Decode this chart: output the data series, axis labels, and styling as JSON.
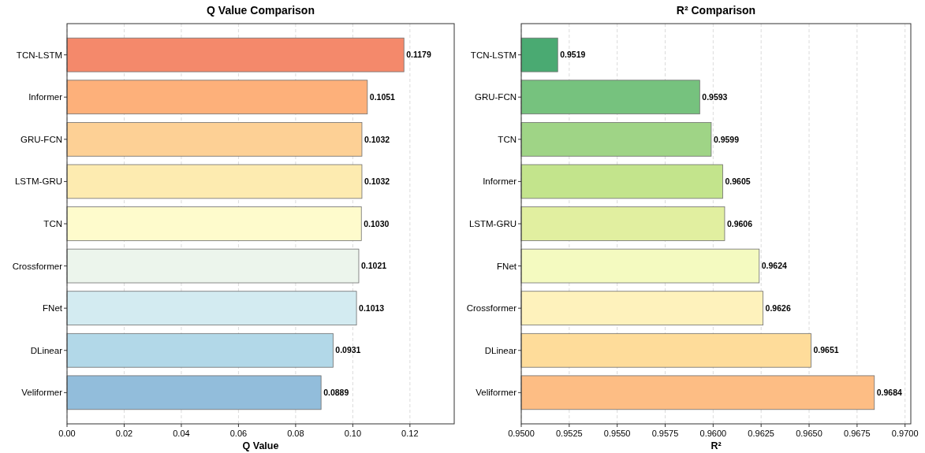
{
  "chart_data": [
    {
      "type": "bar",
      "orientation": "horizontal",
      "title": "Q Value Comparison",
      "xlabel": "Q Value",
      "categories": [
        "TCN-LSTM",
        "Informer",
        "GRU-FCN",
        "LSTM-GRU",
        "TCN",
        "Crossformer",
        "FNet",
        "DLinear",
        "Veliformer"
      ],
      "values": [
        0.1179,
        0.1051,
        0.1032,
        0.1032,
        0.103,
        0.1021,
        0.1013,
        0.0931,
        0.0889
      ],
      "colors": [
        "#f4896b",
        "#fdb07a",
        "#fdd095",
        "#fdebb0",
        "#fefbcc",
        "#ecf5ec",
        "#d3ebf1",
        "#b2d8e8",
        "#92bddb"
      ],
      "xlim": [
        0,
        0.1355
      ],
      "xticks": [
        {
          "value": 0,
          "label": "0.00"
        },
        {
          "value": 0.02,
          "label": "0.02"
        },
        {
          "value": 0.04,
          "label": "0.04"
        },
        {
          "value": 0.06,
          "label": "0.06"
        },
        {
          "value": 0.08,
          "label": "0.08"
        },
        {
          "value": 0.1,
          "label": "0.10"
        },
        {
          "value": 0.12,
          "label": "0.12"
        }
      ],
      "value_labels": [
        "0.1179",
        "0.1051",
        "0.1032",
        "0.1032",
        "0.1030",
        "0.1021",
        "0.1013",
        "0.0931",
        "0.0889"
      ],
      "grid": "x"
    },
    {
      "type": "bar",
      "orientation": "horizontal",
      "title": "R² Comparison",
      "xlabel": "R²",
      "categories": [
        "TCN-LSTM",
        "GRU-FCN",
        "TCN",
        "Informer",
        "LSTM-GRU",
        "FNet",
        "Crossformer",
        "DLinear",
        "Veliformer"
      ],
      "values": [
        0.9519,
        0.9593,
        0.9599,
        0.9605,
        0.9606,
        0.9624,
        0.9626,
        0.9651,
        0.9684
      ],
      "colors": [
        "#4aaa72",
        "#76c27e",
        "#9fd486",
        "#c3e48c",
        "#e1efa0",
        "#f4fac0",
        "#fef2bc",
        "#fedc9a",
        "#fdbd84"
      ],
      "xlim": [
        0.95,
        0.9703
      ],
      "xticks": [
        {
          "value": 0.95,
          "label": "0.9500"
        },
        {
          "value": 0.9525,
          "label": "0.9525"
        },
        {
          "value": 0.955,
          "label": "0.9550"
        },
        {
          "value": 0.9575,
          "label": "0.9575"
        },
        {
          "value": 0.96,
          "label": "0.9600"
        },
        {
          "value": 0.9625,
          "label": "0.9625"
        },
        {
          "value": 0.965,
          "label": "0.9650"
        },
        {
          "value": 0.9675,
          "label": "0.9675"
        },
        {
          "value": 0.97,
          "label": "0.9700"
        }
      ],
      "value_labels": [
        "0.9519",
        "0.9593",
        "0.9599",
        "0.9605",
        "0.9606",
        "0.9624",
        "0.9626",
        "0.9651",
        "0.9684"
      ],
      "grid": "x"
    }
  ]
}
